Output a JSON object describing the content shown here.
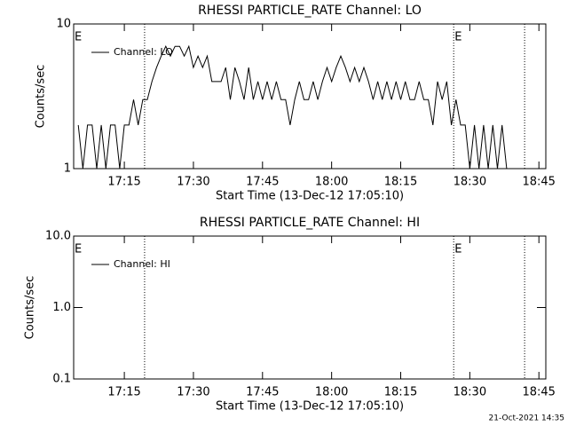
{
  "chart_data": [
    {
      "type": "line",
      "title": "RHESSI PARTICLE_RATE Channel: LO",
      "xlabel": "Start Time (13-Dec-12 17:05:10)",
      "ylabel": "Counts/sec",
      "log_y": true,
      "legend": "upper left",
      "xlim": [
        "17:04:00",
        "18:46:30"
      ],
      "xticks": [
        "17:15",
        "17:30",
        "17:45",
        "18:00",
        "18:15",
        "18:30",
        "18:45"
      ],
      "ylim": [
        1,
        10
      ],
      "yticks": [
        1,
        10
      ],
      "vlines": [
        "17:19:24",
        "18:26:30",
        "18:41:54"
      ],
      "annotations": [
        {
          "x": "17:04:00",
          "text": "E"
        },
        {
          "x": "18:26:30",
          "text": "E"
        }
      ],
      "x": [
        "17:05",
        "17:06",
        "17:07",
        "17:08",
        "17:09",
        "17:10",
        "17:11",
        "17:12",
        "17:13",
        "17:14",
        "17:15",
        "17:16",
        "17:17",
        "17:18",
        "17:19",
        "17:20",
        "17:21",
        "17:22",
        "17:23",
        "17:24",
        "17:25",
        "17:26",
        "17:27",
        "17:28",
        "17:29",
        "17:30",
        "17:31",
        "17:32",
        "17:33",
        "17:34",
        "17:35",
        "17:36",
        "17:37",
        "17:38",
        "17:39",
        "17:40",
        "17:41",
        "17:42",
        "17:43",
        "17:44",
        "17:45",
        "17:46",
        "17:47",
        "17:48",
        "17:49",
        "17:50",
        "17:51",
        "17:52",
        "17:53",
        "17:54",
        "17:55",
        "17:56",
        "17:57",
        "17:58",
        "17:59",
        "18:00",
        "18:01",
        "18:02",
        "18:03",
        "18:04",
        "18:05",
        "18:06",
        "18:07",
        "18:08",
        "18:09",
        "18:10",
        "18:11",
        "18:12",
        "18:13",
        "18:14",
        "18:15",
        "18:16",
        "18:17",
        "18:18",
        "18:19",
        "18:20",
        "18:21",
        "18:22",
        "18:23",
        "18:24",
        "18:25",
        "18:26",
        "18:27",
        "18:28",
        "18:29",
        "18:30",
        "18:31",
        "18:32",
        "18:33",
        "18:34",
        "18:35",
        "18:36",
        "18:37",
        "18:38"
      ],
      "series": [
        {
          "name": "Channel: LO",
          "color": "#000000",
          "values": [
            2,
            1,
            2,
            2,
            1,
            2,
            1,
            2,
            2,
            1,
            2,
            2,
            3,
            2,
            3,
            3,
            4,
            5,
            6,
            7,
            6,
            7,
            7,
            6,
            7,
            5,
            6,
            5,
            6,
            4,
            4,
            4,
            5,
            3,
            5,
            4,
            3,
            5,
            3,
            4,
            3,
            4,
            3,
            4,
            3,
            3,
            2,
            3,
            4,
            3,
            3,
            4,
            3,
            4,
            5,
            4,
            5,
            6,
            5,
            4,
            5,
            4,
            5,
            4,
            3,
            4,
            3,
            4,
            3,
            4,
            3,
            4,
            3,
            3,
            4,
            3,
            3,
            2,
            4,
            3,
            4,
            2,
            3,
            2,
            2,
            1,
            2,
            1,
            2,
            1,
            2,
            1,
            2,
            1
          ]
        }
      ]
    },
    {
      "type": "line",
      "title": "RHESSI PARTICLE_RATE Channel: HI",
      "xlabel": "Start Time (13-Dec-12 17:05:10)",
      "ylabel": "Counts/sec",
      "log_y": true,
      "legend": "upper left",
      "xlim": [
        "17:04:00",
        "18:46:30"
      ],
      "xticks": [
        "17:15",
        "17:30",
        "17:45",
        "18:00",
        "18:15",
        "18:30",
        "18:45"
      ],
      "ylim": [
        0.1,
        10
      ],
      "yticks": [
        {
          "value": 0.1,
          "label": "0.1"
        },
        {
          "value": 1,
          "label": "1.0"
        },
        {
          "value": 10,
          "label": "10.0"
        }
      ],
      "vlines": [
        "17:19:24",
        "18:26:30",
        "18:41:54"
      ],
      "annotations": [
        {
          "x": "17:04:00",
          "text": "E"
        },
        {
          "x": "18:26:30",
          "text": "E"
        }
      ],
      "x": [],
      "series": [
        {
          "name": "Channel: HI",
          "color": "#000000",
          "values": []
        }
      ]
    }
  ],
  "footer": "21-Oct-2021 14:35"
}
